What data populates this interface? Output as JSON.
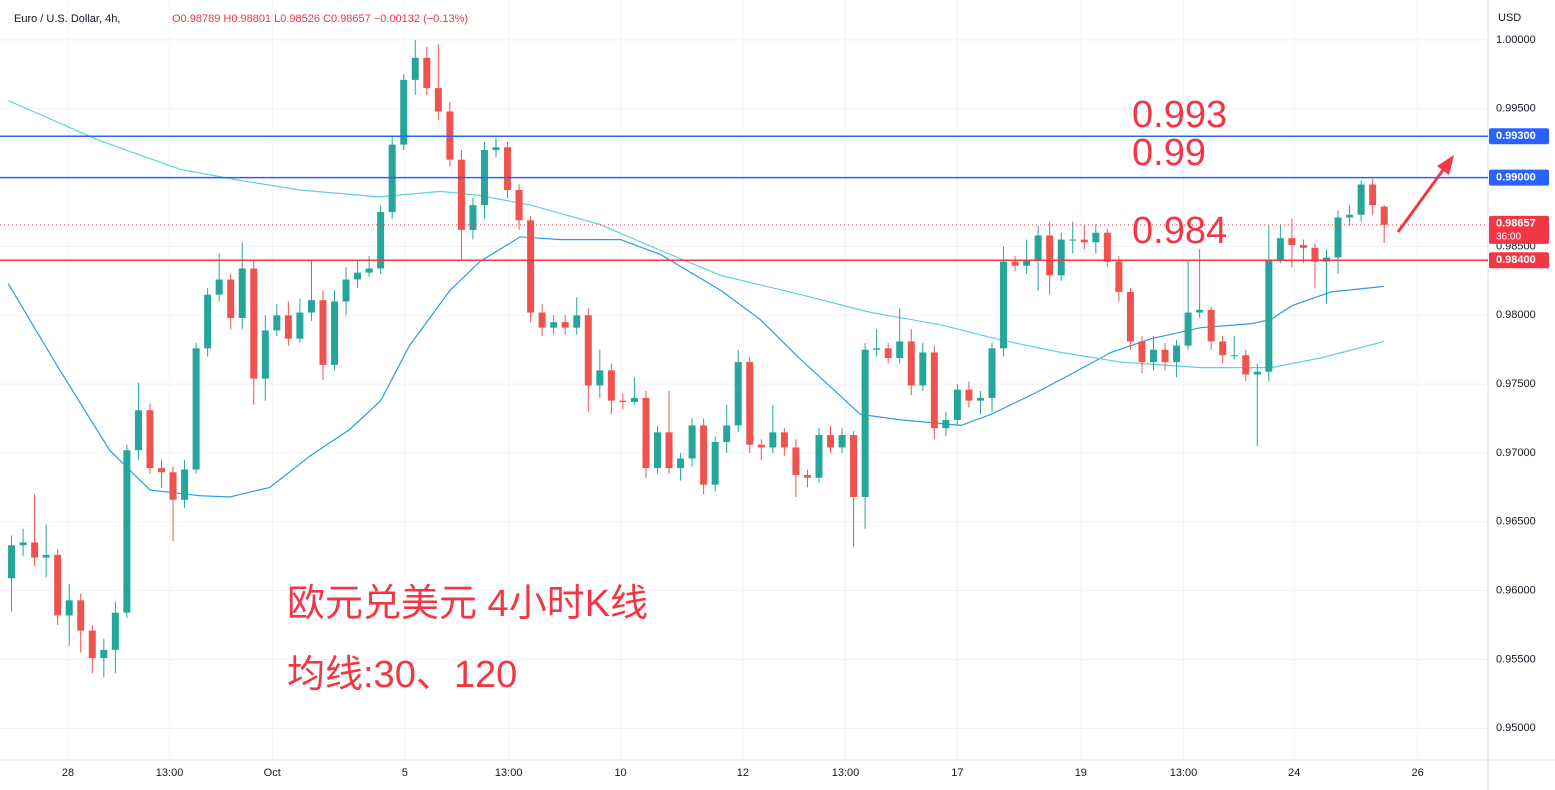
{
  "chart_data": {
    "type": "candlestick",
    "symbol": "Euro / U.S. Dollar, 4h,",
    "ohlc_text": "O0.98789 H0.98801 L0.98526 C0.98657 −0.00132 (−0.13%)",
    "currency": "USD",
    "up_color": "#26a69a",
    "down_color": "#ef5350",
    "xlim": [
      -1,
      128
    ],
    "xticks": [
      {
        "value": 4.9,
        "label": "28"
      },
      {
        "value": 13.7,
        "label": "13:00"
      },
      {
        "value": 22.6,
        "label": "Oct"
      },
      {
        "value": 34.1,
        "label": "5"
      },
      {
        "value": 43.1,
        "label": "13:00"
      },
      {
        "value": 52.8,
        "label": "10"
      },
      {
        "value": 63.4,
        "label": "12"
      },
      {
        "value": 72.3,
        "label": "13:00"
      },
      {
        "value": 82,
        "label": "17"
      },
      {
        "value": 92.7,
        "label": "19"
      },
      {
        "value": 101.6,
        "label": "13:00"
      },
      {
        "value": 111.2,
        "label": "24"
      },
      {
        "value": 121.9,
        "label": "26"
      }
    ],
    "ylim": [
      0.9477,
      1.0029
    ],
    "yticks": [
      {
        "value": 0.95,
        "label": "0.95000"
      },
      {
        "value": 0.955,
        "label": "0.95500"
      },
      {
        "value": 0.96,
        "label": "0.96000"
      },
      {
        "value": 0.965,
        "label": "0.96500"
      },
      {
        "value": 0.97,
        "label": "0.97000"
      },
      {
        "value": 0.975,
        "label": "0.97500"
      },
      {
        "value": 0.98,
        "label": "0.98000"
      },
      {
        "value": 0.985,
        "label": "0.98500"
      },
      {
        "value": 0.99,
        "label": "0.99000"
      },
      {
        "value": 0.995,
        "label": "0.99500"
      },
      {
        "value": 1.0,
        "label": "1.00000"
      }
    ],
    "grid": true,
    "candles": [
      [
        0.9609,
        0.964,
        0.9585,
        0.9633
      ],
      [
        0.9633,
        0.9645,
        0.9625,
        0.9635
      ],
      [
        0.9635,
        0.967,
        0.9618,
        0.9624
      ],
      [
        0.9624,
        0.9648,
        0.961,
        0.9626
      ],
      [
        0.9626,
        0.963,
        0.9575,
        0.9582
      ],
      [
        0.9582,
        0.9605,
        0.956,
        0.9593
      ],
      [
        0.9593,
        0.9598,
        0.9555,
        0.9571
      ],
      [
        0.9571,
        0.9575,
        0.954,
        0.9551
      ],
      [
        0.9551,
        0.9565,
        0.9537,
        0.9557
      ],
      [
        0.9557,
        0.9592,
        0.954,
        0.9584
      ],
      [
        0.9584,
        0.9706,
        0.958,
        0.9702
      ],
      [
        0.9702,
        0.9751,
        0.9695,
        0.9731
      ],
      [
        0.9731,
        0.9736,
        0.9685,
        0.9689
      ],
      [
        0.9689,
        0.9695,
        0.9675,
        0.9686
      ],
      [
        0.9686,
        0.969,
        0.9636,
        0.9666
      ],
      [
        0.9666,
        0.9695,
        0.966,
        0.9688
      ],
      [
        0.9688,
        0.978,
        0.9685,
        0.9776
      ],
      [
        0.9776,
        0.982,
        0.977,
        0.9815
      ],
      [
        0.9815,
        0.9845,
        0.981,
        0.9826
      ],
      [
        0.9826,
        0.983,
        0.979,
        0.9798
      ],
      [
        0.9798,
        0.9853,
        0.979,
        0.9834
      ],
      [
        0.9834,
        0.984,
        0.9735,
        0.9754
      ],
      [
        0.9754,
        0.98,
        0.9738,
        0.9789
      ],
      [
        0.9789,
        0.9808,
        0.9785,
        0.98
      ],
      [
        0.98,
        0.981,
        0.9778,
        0.9783
      ],
      [
        0.9783,
        0.9812,
        0.978,
        0.9802
      ],
      [
        0.9802,
        0.984,
        0.9796,
        0.9811
      ],
      [
        0.9811,
        0.9818,
        0.9753,
        0.9764
      ],
      [
        0.9764,
        0.9818,
        0.976,
        0.981
      ],
      [
        0.981,
        0.9835,
        0.98,
        0.9826
      ],
      [
        0.9826,
        0.984,
        0.982,
        0.9831
      ],
      [
        0.9831,
        0.9843,
        0.9828,
        0.9834
      ],
      [
        0.9834,
        0.988,
        0.983,
        0.9875
      ],
      [
        0.9875,
        0.993,
        0.987,
        0.9924
      ],
      [
        0.9924,
        0.9975,
        0.992,
        0.9971
      ],
      [
        0.9971,
        1.0,
        0.996,
        0.9987
      ],
      [
        0.9987,
        0.9995,
        0.996,
        0.9965
      ],
      [
        0.9965,
        0.9997,
        0.9942,
        0.9948
      ],
      [
        0.9948,
        0.9955,
        0.9908,
        0.9913
      ],
      [
        0.9913,
        0.992,
        0.984,
        0.9862
      ],
      [
        0.9862,
        0.9885,
        0.9855,
        0.988
      ],
      [
        0.988,
        0.9926,
        0.987,
        0.992
      ],
      [
        0.992,
        0.9929,
        0.9915,
        0.9922
      ],
      [
        0.9922,
        0.9926,
        0.9885,
        0.9891
      ],
      [
        0.9891,
        0.9895,
        0.9862,
        0.9869
      ],
      [
        0.9869,
        0.9872,
        0.9795,
        0.9802
      ],
      [
        0.9802,
        0.9808,
        0.9785,
        0.9791
      ],
      [
        0.9791,
        0.98,
        0.9786,
        0.9795
      ],
      [
        0.9795,
        0.98,
        0.9786,
        0.9791
      ],
      [
        0.9791,
        0.9813,
        0.9786,
        0.98
      ],
      [
        0.98,
        0.9805,
        0.973,
        0.9749
      ],
      [
        0.9749,
        0.9775,
        0.974,
        0.976
      ],
      [
        0.976,
        0.9765,
        0.9728,
        0.9738
      ],
      [
        0.9738,
        0.9743,
        0.9732,
        0.9737
      ],
      [
        0.9737,
        0.9755,
        0.9735,
        0.974
      ],
      [
        0.974,
        0.9745,
        0.9682,
        0.9689
      ],
      [
        0.9689,
        0.972,
        0.9685,
        0.9715
      ],
      [
        0.9715,
        0.9745,
        0.9685,
        0.9689
      ],
      [
        0.9689,
        0.97,
        0.968,
        0.9696
      ],
      [
        0.9696,
        0.9725,
        0.969,
        0.972
      ],
      [
        0.972,
        0.9725,
        0.967,
        0.9677
      ],
      [
        0.9677,
        0.9712,
        0.9672,
        0.9708
      ],
      [
        0.9708,
        0.9735,
        0.97,
        0.972
      ],
      [
        0.972,
        0.9775,
        0.9715,
        0.9766
      ],
      [
        0.9766,
        0.977,
        0.97,
        0.9706
      ],
      [
        0.9706,
        0.971,
        0.9695,
        0.9704
      ],
      [
        0.9704,
        0.9735,
        0.97,
        0.9715
      ],
      [
        0.9715,
        0.9718,
        0.9698,
        0.9704
      ],
      [
        0.9704,
        0.971,
        0.9668,
        0.9684
      ],
      [
        0.9684,
        0.9688,
        0.9675,
        0.9682
      ],
      [
        0.9682,
        0.9718,
        0.9678,
        0.9713
      ],
      [
        0.9713,
        0.972,
        0.97,
        0.9704
      ],
      [
        0.9704,
        0.9718,
        0.97,
        0.9713
      ],
      [
        0.9713,
        0.9716,
        0.9632,
        0.9668
      ],
      [
        0.9668,
        0.978,
        0.9645,
        0.9775
      ],
      [
        0.9775,
        0.979,
        0.977,
        0.9776
      ],
      [
        0.9776,
        0.978,
        0.9765,
        0.9769
      ],
      [
        0.9769,
        0.9805,
        0.9765,
        0.9781
      ],
      [
        0.9781,
        0.979,
        0.9742,
        0.9749
      ],
      [
        0.9749,
        0.978,
        0.9745,
        0.9773
      ],
      [
        0.9773,
        0.9778,
        0.971,
        0.9718
      ],
      [
        0.9718,
        0.973,
        0.9712,
        0.9724
      ],
      [
        0.9724,
        0.975,
        0.972,
        0.9746
      ],
      [
        0.9746,
        0.9752,
        0.9733,
        0.9738
      ],
      [
        0.9738,
        0.9745,
        0.9728,
        0.974
      ],
      [
        0.974,
        0.978,
        0.973,
        0.9776
      ],
      [
        0.9776,
        0.985,
        0.977,
        0.9839
      ],
      [
        0.9839,
        0.9843,
        0.9832,
        0.9836
      ],
      [
        0.9836,
        0.9855,
        0.983,
        0.984
      ],
      [
        0.984,
        0.9865,
        0.9818,
        0.9858
      ],
      [
        0.9858,
        0.9868,
        0.9815,
        0.9829
      ],
      [
        0.9829,
        0.986,
        0.9825,
        0.9855
      ],
      [
        0.9855,
        0.9868,
        0.9845,
        0.9855
      ],
      [
        0.9855,
        0.9865,
        0.9848,
        0.9853
      ],
      [
        0.9853,
        0.9866,
        0.9845,
        0.986
      ],
      [
        0.986,
        0.9863,
        0.9835,
        0.9839
      ],
      [
        0.9839,
        0.9843,
        0.981,
        0.9817
      ],
      [
        0.9817,
        0.982,
        0.9775,
        0.9781
      ],
      [
        0.9781,
        0.9785,
        0.9758,
        0.9766
      ],
      [
        0.9766,
        0.9785,
        0.976,
        0.9775
      ],
      [
        0.9775,
        0.978,
        0.976,
        0.9766
      ],
      [
        0.9766,
        0.9782,
        0.9755,
        0.9778
      ],
      [
        0.9778,
        0.984,
        0.9775,
        0.9802
      ],
      [
        0.9802,
        0.9848,
        0.9798,
        0.9804
      ],
      [
        0.9804,
        0.9806,
        0.9775,
        0.9781
      ],
      [
        0.9781,
        0.9785,
        0.9765,
        0.9771
      ],
      [
        0.9771,
        0.9785,
        0.9768,
        0.9771
      ],
      [
        0.9771,
        0.9775,
        0.9752,
        0.9757
      ],
      [
        0.9757,
        0.9765,
        0.9705,
        0.9759
      ],
      [
        0.9759,
        0.9865,
        0.9752,
        0.984
      ],
      [
        0.984,
        0.9866,
        0.9838,
        0.9856
      ],
      [
        0.9856,
        0.987,
        0.9835,
        0.9851
      ],
      [
        0.9851,
        0.9855,
        0.9838,
        0.9849
      ],
      [
        0.9849,
        0.9852,
        0.982,
        0.9839
      ],
      [
        0.9839,
        0.9848,
        0.9808,
        0.9842
      ],
      [
        0.9842,
        0.9876,
        0.983,
        0.9871
      ],
      [
        0.9871,
        0.988,
        0.9865,
        0.9873
      ],
      [
        0.9873,
        0.9898,
        0.9868,
        0.9895
      ],
      [
        0.9895,
        0.9899,
        0.9873,
        0.988
      ],
      [
        0.98789,
        0.98801,
        0.98526,
        0.98657
      ]
    ],
    "lines": [
      {
        "color": "#2e9be6",
        "x": [
          -0.3,
          4.2,
          8.5,
          12,
          16.3,
          18.9,
          22.4,
          25.9,
          29.3,
          32,
          34.5,
          38,
          40.6,
          44.1,
          47.6,
          52.8,
          56.3,
          61.5,
          64.9,
          68.4,
          73.6,
          77.1,
          82.3,
          84.9,
          88.4,
          91.8,
          95.3,
          98.8,
          103.1,
          107.5,
          109.2,
          111,
          114.4,
          119
        ],
        "values": [
          0.9823,
          0.976,
          0.9702,
          0.9673,
          0.9669,
          0.9668,
          0.9675,
          0.9698,
          0.9717,
          0.9738,
          0.9778,
          0.9818,
          0.9839,
          0.9857,
          0.9855,
          0.9855,
          0.9844,
          0.9818,
          0.9797,
          0.9768,
          0.9728,
          0.9724,
          0.972,
          0.9728,
          0.9742,
          0.9757,
          0.9773,
          0.9783,
          0.9791,
          0.9794,
          0.9797,
          0.9807,
          0.9817,
          0.9821
        ]
      },
      {
        "color": "#5fd0e0",
        "x": [
          -0.3,
          7.6,
          14.6,
          19.8,
          25,
          31.9,
          37.2,
          40.6,
          45,
          51,
          56.3,
          61.5,
          68.4,
          74.5,
          80.6,
          85.8,
          91,
          96.2,
          103.1,
          109.2,
          113.5,
          119
        ],
        "values": [
          0.9956,
          0.9927,
          0.9906,
          0.9898,
          0.9891,
          0.9886,
          0.989,
          0.9887,
          0.988,
          0.9866,
          0.9847,
          0.9829,
          0.9815,
          0.9802,
          0.9793,
          0.9782,
          0.9773,
          0.9766,
          0.9762,
          0.9762,
          0.9769,
          0.9781
        ]
      }
    ],
    "levels": [
      {
        "value": 0.993,
        "label": "0.99300",
        "color": "#2962ff"
      },
      {
        "value": 0.99,
        "label": "0.99000",
        "color": "#2962ff"
      },
      {
        "value": 0.984,
        "label": "0.98400",
        "color": "#f23645"
      }
    ],
    "current": {
      "value": 0.98657,
      "label": "0.98657",
      "countdown": "36:00",
      "color": "#f23645"
    },
    "annotations": [
      "0.993",
      "0.99",
      "0.984"
    ],
    "caption": [
      "欧元兑美元 4小时K线",
      "均线:30、120"
    ]
  }
}
